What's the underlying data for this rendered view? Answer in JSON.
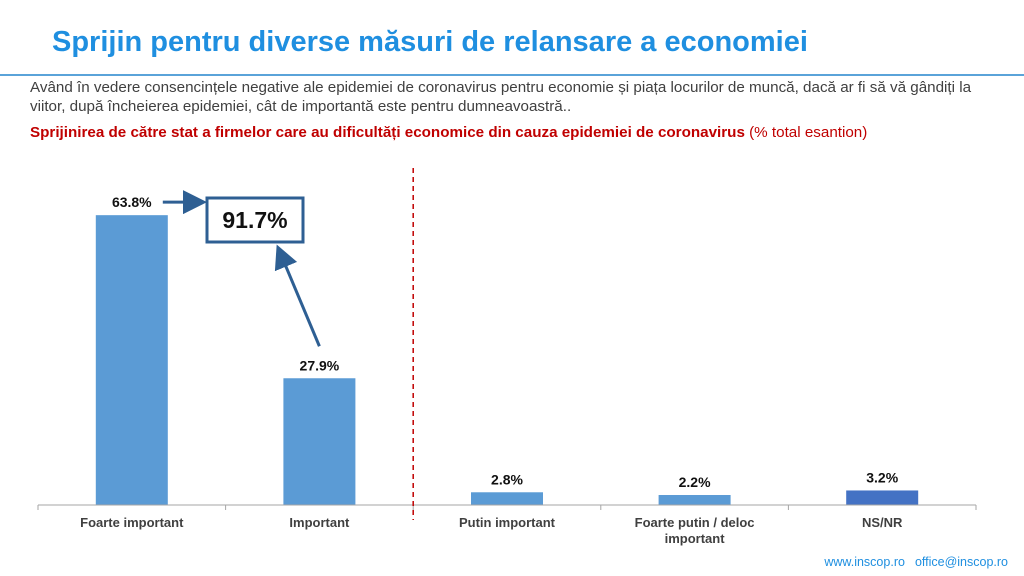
{
  "header": {
    "title": "Sprijin pentru diverse măsuri de relansare a economiei",
    "question": "Având în vedere consencințele negative ale epidemiei de coronavirus pentru economie și piața locurilor de muncă, dacă ar fi să vă gândiți la viitor, după încheierea epidemiei, cât de importantă este pentru dumneavoastră..",
    "subtitle_bold": "Sprijinirea de către stat a firmelor care au dificultăți economice din cauza epidemiei de coronavirus",
    "subtitle_suffix": " (% total esantion)"
  },
  "chart_data": {
    "type": "bar",
    "categories": [
      "Foarte important",
      "Important",
      "Putin important",
      "Foarte putin / deloc important",
      "NS/NR"
    ],
    "values": [
      63.8,
      27.9,
      2.8,
      2.2,
      3.2
    ],
    "value_labels": [
      "63.8%",
      "27.9%",
      "2.8%",
      "2.2%",
      "3.2%"
    ],
    "bar_colors": [
      "#5b9bd5",
      "#5b9bd5",
      "#5b9bd5",
      "#5b9bd5",
      "#4472c4"
    ],
    "ylim": [
      0,
      70
    ],
    "grid": false,
    "divider_after_index": 1,
    "divider_color": "#c00000",
    "annotation": {
      "text": "91.7%",
      "sum_of_indices": [
        0,
        1
      ],
      "color": "#2e5f93"
    }
  },
  "footer": {
    "website": "www.inscop.ro",
    "email": "office@inscop.ro"
  }
}
